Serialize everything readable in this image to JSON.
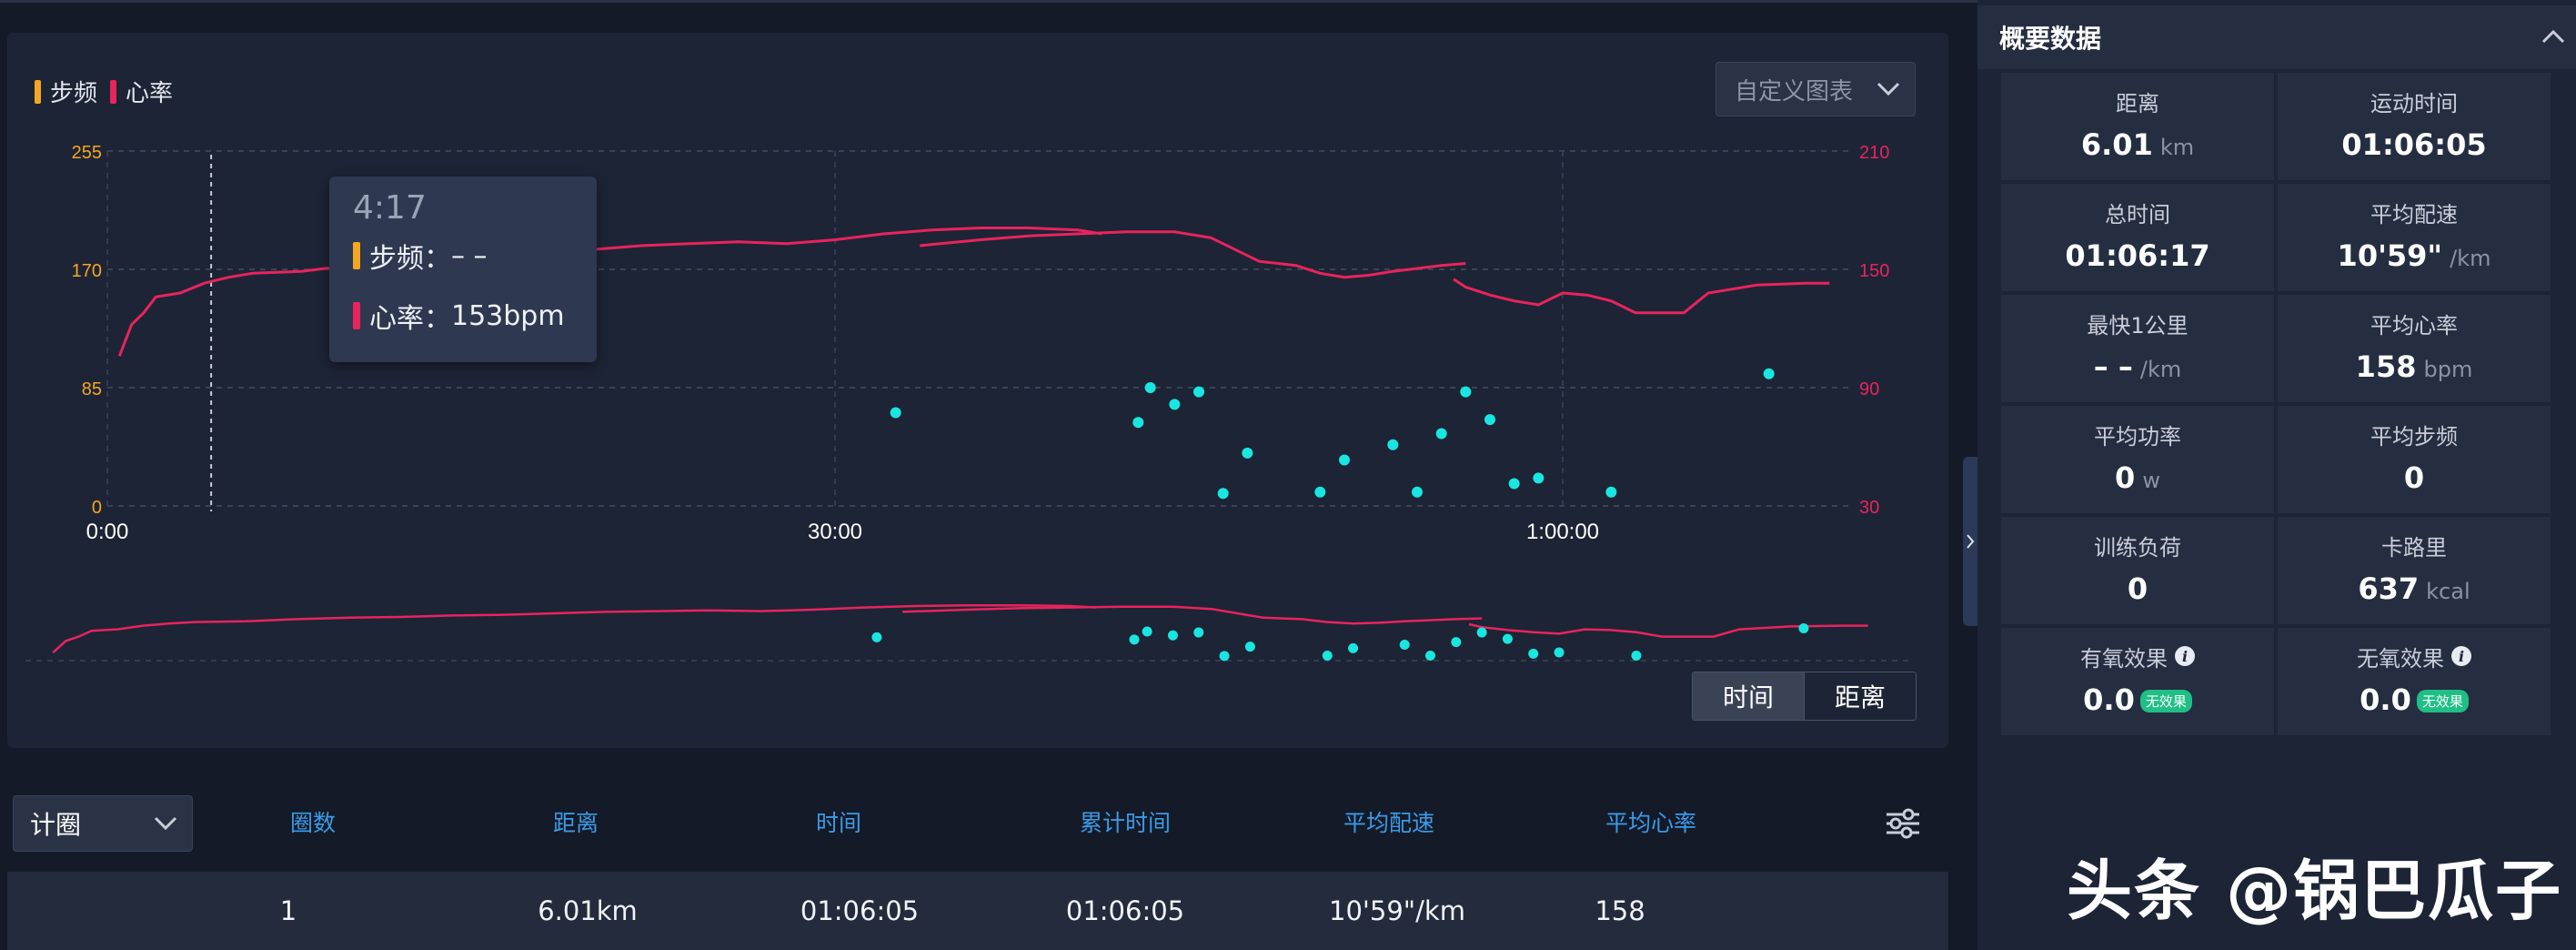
{
  "legend": [
    {
      "label": "步频",
      "color": "#f5a623"
    },
    {
      "label": "心率",
      "color": "#e8245d"
    }
  ],
  "custom_chart_label": "自定义图表",
  "left_axis_ticks": [
    "255",
    "170",
    "85",
    "0"
  ],
  "right_axis_ticks": [
    "210",
    "150",
    "90",
    "30"
  ],
  "time_ticks": [
    "0:00",
    "30:00",
    "1:00:00"
  ],
  "tooltip": {
    "time": "4:17",
    "cadence_label": "步频：",
    "cadence_value": "– –",
    "hr_label": "心率：",
    "hr_value": "153bpm"
  },
  "chart_data": {
    "type": "line",
    "x_unit": "minutes",
    "series": [
      {
        "name": "心率",
        "axis": "right",
        "color": "#e8245d",
        "points": [
          [
            0.5,
            106
          ],
          [
            1,
            122
          ],
          [
            1.5,
            128
          ],
          [
            2,
            136
          ],
          [
            3,
            138
          ],
          [
            4,
            143
          ],
          [
            5,
            146
          ],
          [
            6,
            148
          ],
          [
            8,
            149
          ],
          [
            10,
            152
          ],
          [
            12,
            154
          ],
          [
            14,
            155
          ],
          [
            16,
            157
          ],
          [
            18,
            158
          ],
          [
            20,
            160
          ],
          [
            22,
            162
          ],
          [
            24,
            163
          ],
          [
            26,
            164
          ],
          [
            28,
            163
          ],
          [
            30,
            165
          ],
          [
            32,
            168
          ],
          [
            34,
            170
          ],
          [
            36,
            171
          ],
          [
            38,
            171
          ],
          [
            40,
            170
          ],
          [
            41,
            168
          ]
        ],
        "segments_break_after_minutes": [
          31.5
        ]
      },
      {
        "name": "心率",
        "axis": "right",
        "color": "#e8245d",
        "points": [
          [
            33.5,
            162
          ],
          [
            36,
            165
          ],
          [
            38,
            167
          ],
          [
            40,
            168
          ],
          [
            42,
            169
          ],
          [
            44,
            169
          ],
          [
            45.5,
            166
          ],
          [
            46.5,
            160
          ],
          [
            47.5,
            154
          ],
          [
            49,
            152
          ],
          [
            50,
            148
          ],
          [
            51,
            146
          ],
          [
            52,
            147
          ],
          [
            53,
            149
          ],
          [
            55,
            152
          ],
          [
            56,
            153
          ]
        ]
      },
      {
        "name": "心率",
        "axis": "right",
        "color": "#e8245d",
        "points": [
          [
            55.5,
            145
          ],
          [
            56,
            141
          ],
          [
            57,
            137
          ],
          [
            58,
            134
          ],
          [
            59,
            132
          ],
          [
            60,
            138
          ],
          [
            61,
            137
          ],
          [
            62,
            134
          ],
          [
            63,
            128
          ],
          [
            64,
            128
          ],
          [
            65,
            128
          ],
          [
            66,
            138
          ],
          [
            67,
            140
          ],
          [
            68,
            142
          ],
          [
            70,
            143
          ],
          [
            71,
            143
          ]
        ]
      }
    ],
    "cadence_points": [
      [
        32.5,
        67
      ],
      [
        42.5,
        60
      ],
      [
        43,
        85
      ],
      [
        44,
        73
      ],
      [
        45,
        82
      ],
      [
        46,
        9
      ],
      [
        47,
        38
      ],
      [
        50,
        10
      ],
      [
        51,
        33
      ],
      [
        53,
        44
      ],
      [
        54,
        10
      ],
      [
        55,
        52
      ],
      [
        56,
        82
      ],
      [
        57,
        62
      ],
      [
        58,
        16
      ],
      [
        59,
        20
      ],
      [
        62,
        10
      ],
      [
        68.5,
        95
      ]
    ],
    "left_ylim": [
      0,
      255
    ],
    "right_ylim": [
      30,
      210
    ],
    "xlim": [
      0,
      72
    ]
  },
  "toggle": {
    "time": "时间",
    "distance": "距离"
  },
  "lap_select_label": "计圈",
  "table": {
    "headers": [
      "圈数",
      "距离",
      "时间",
      "累计时间",
      "平均配速",
      "平均心率"
    ],
    "rows": [
      [
        "1",
        "6.01km",
        "01:06:05",
        "01:06:05",
        "10'59\"/km",
        "158"
      ]
    ]
  },
  "summary": {
    "title": "概要数据",
    "items": [
      {
        "label": "距离",
        "value": "6.01",
        "unit": "km"
      },
      {
        "label": "运动时间",
        "value": "01:06:05",
        "unit": ""
      },
      {
        "label": "总时间",
        "value": "01:06:17",
        "unit": ""
      },
      {
        "label": "平均配速",
        "value": "10'59\"",
        "unit": "/km"
      },
      {
        "label": "最快1公里",
        "value": "– –",
        "unit": "/km"
      },
      {
        "label": "平均心率",
        "value": "158",
        "unit": "bpm"
      },
      {
        "label": "平均功率",
        "value": "0",
        "unit": "w"
      },
      {
        "label": "平均步频",
        "value": "0",
        "unit": ""
      },
      {
        "label": "训练负荷",
        "value": "0",
        "unit": ""
      },
      {
        "label": "卡路里",
        "value": "637",
        "unit": "kcal"
      },
      {
        "label": "有氧效果",
        "value": "0.0",
        "unit": "",
        "badge": "无效果"
      },
      {
        "label": "无氧效果",
        "value": "0.0",
        "unit": "",
        "badge": "无效果"
      }
    ]
  },
  "watermark": "头条 @锅巴瓜子"
}
